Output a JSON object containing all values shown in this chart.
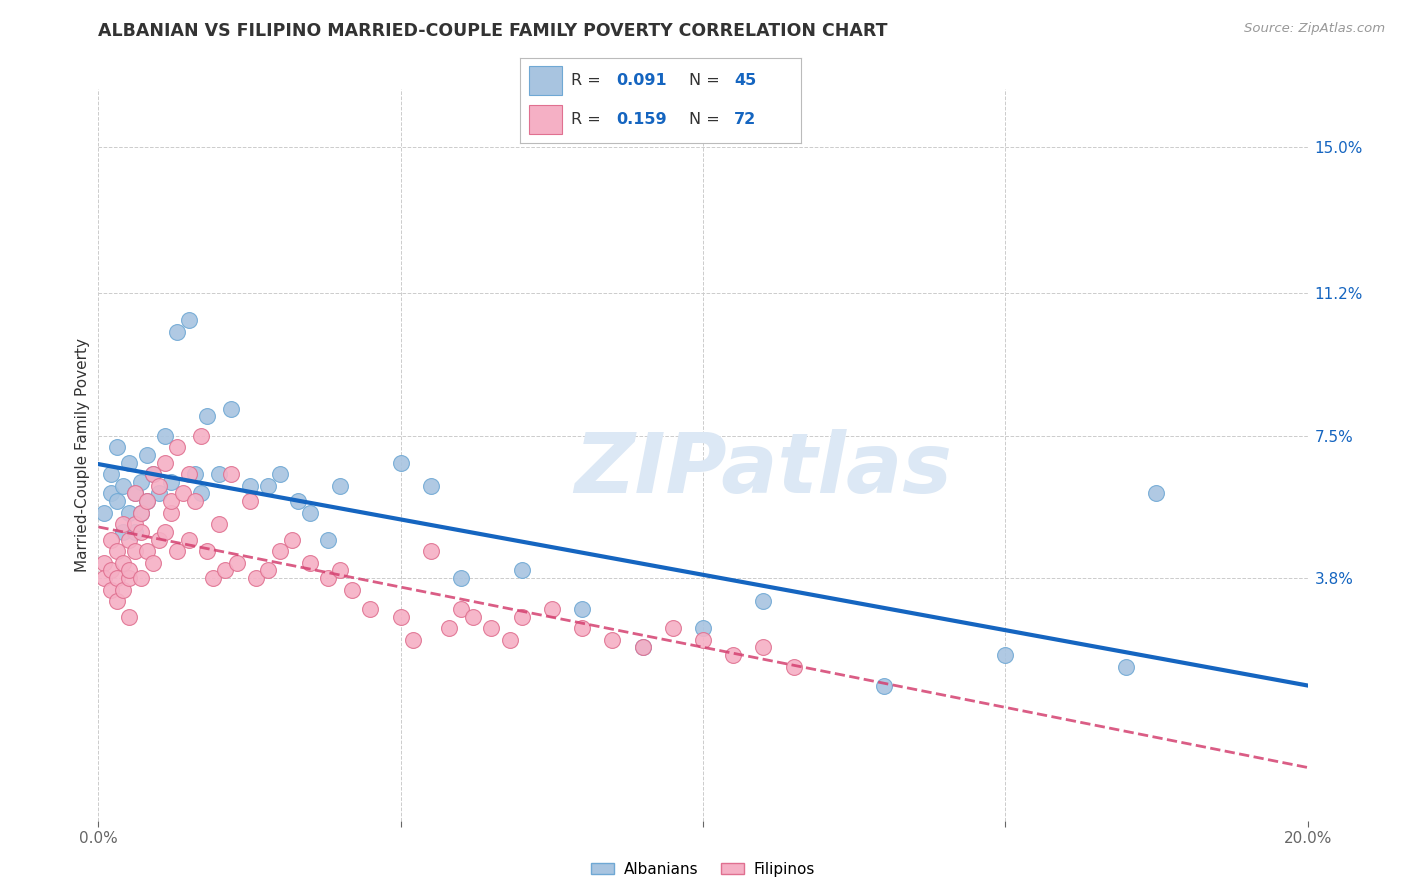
{
  "title": "ALBANIAN VS FILIPINO MARRIED-COUPLE FAMILY POVERTY CORRELATION CHART",
  "source": "Source: ZipAtlas.com",
  "ylabel": "Married-Couple Family Poverty",
  "xlim": [
    0.0,
    0.2
  ],
  "ylim": [
    -0.025,
    0.165
  ],
  "ytick_positions": [
    0.038,
    0.075,
    0.112,
    0.15
  ],
  "ytick_labels": [
    "3.8%",
    "7.5%",
    "11.2%",
    "15.0%"
  ],
  "albanian_color": "#a8c4e0",
  "albanian_edge": "#6fa8d4",
  "albanian_line_color": "#1565c0",
  "filipino_color": "#f5b0c5",
  "filipino_edge": "#e07090",
  "filipino_line_color": "#d44070",
  "watermark": "ZIPatlas",
  "watermark_color": "#dce8f5",
  "legend_albanian_R": "0.091",
  "legend_albanian_N": "45",
  "legend_filipino_R": "0.159",
  "legend_filipino_N": "72",
  "albanian_x": [
    0.001,
    0.002,
    0.002,
    0.003,
    0.003,
    0.004,
    0.004,
    0.005,
    0.005,
    0.006,
    0.006,
    0.007,
    0.007,
    0.008,
    0.008,
    0.009,
    0.01,
    0.011,
    0.012,
    0.013,
    0.015,
    0.016,
    0.017,
    0.018,
    0.02,
    0.022,
    0.025,
    0.028,
    0.03,
    0.033,
    0.035,
    0.038,
    0.04,
    0.05,
    0.055,
    0.06,
    0.07,
    0.08,
    0.09,
    0.1,
    0.11,
    0.13,
    0.15,
    0.17,
    0.175
  ],
  "albanian_y": [
    0.055,
    0.06,
    0.065,
    0.058,
    0.072,
    0.05,
    0.062,
    0.055,
    0.068,
    0.06,
    0.05,
    0.063,
    0.055,
    0.058,
    0.07,
    0.065,
    0.06,
    0.075,
    0.063,
    0.102,
    0.105,
    0.065,
    0.06,
    0.08,
    0.065,
    0.082,
    0.062,
    0.062,
    0.065,
    0.058,
    0.055,
    0.048,
    0.062,
    0.068,
    0.062,
    0.038,
    0.04,
    0.03,
    0.02,
    0.025,
    0.032,
    0.01,
    0.018,
    0.015,
    0.06
  ],
  "filipino_x": [
    0.001,
    0.001,
    0.002,
    0.002,
    0.002,
    0.003,
    0.003,
    0.003,
    0.004,
    0.004,
    0.004,
    0.005,
    0.005,
    0.005,
    0.005,
    0.006,
    0.006,
    0.006,
    0.007,
    0.007,
    0.007,
    0.008,
    0.008,
    0.009,
    0.009,
    0.01,
    0.01,
    0.011,
    0.011,
    0.012,
    0.012,
    0.013,
    0.013,
    0.014,
    0.015,
    0.015,
    0.016,
    0.017,
    0.018,
    0.019,
    0.02,
    0.021,
    0.022,
    0.023,
    0.025,
    0.026,
    0.028,
    0.03,
    0.032,
    0.035,
    0.038,
    0.04,
    0.042,
    0.045,
    0.05,
    0.052,
    0.055,
    0.058,
    0.06,
    0.062,
    0.065,
    0.068,
    0.07,
    0.075,
    0.08,
    0.085,
    0.09,
    0.095,
    0.1,
    0.105,
    0.11,
    0.115
  ],
  "filipino_y": [
    0.042,
    0.038,
    0.04,
    0.035,
    0.048,
    0.038,
    0.045,
    0.032,
    0.042,
    0.052,
    0.035,
    0.038,
    0.028,
    0.048,
    0.04,
    0.06,
    0.045,
    0.052,
    0.038,
    0.055,
    0.05,
    0.058,
    0.045,
    0.065,
    0.042,
    0.062,
    0.048,
    0.05,
    0.068,
    0.055,
    0.058,
    0.072,
    0.045,
    0.06,
    0.048,
    0.065,
    0.058,
    0.075,
    0.045,
    0.038,
    0.052,
    0.04,
    0.065,
    0.042,
    0.058,
    0.038,
    0.04,
    0.045,
    0.048,
    0.042,
    0.038,
    0.04,
    0.035,
    0.03,
    0.028,
    0.022,
    0.045,
    0.025,
    0.03,
    0.028,
    0.025,
    0.022,
    0.028,
    0.03,
    0.025,
    0.022,
    0.02,
    0.025,
    0.022,
    0.018,
    0.02,
    0.015
  ]
}
